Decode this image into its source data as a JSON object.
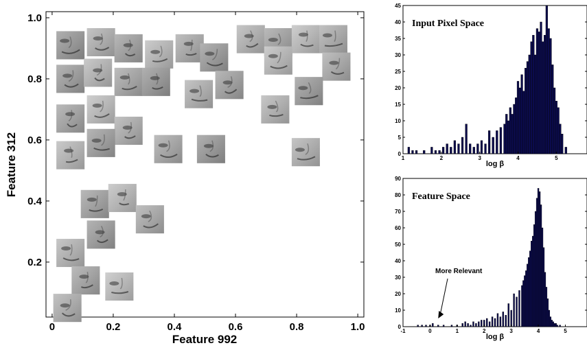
{
  "chart_data": [
    {
      "type": "scatter",
      "title": "",
      "xlabel": "Feature 992",
      "ylabel": "Feature 312",
      "xlim": [
        -0.02,
        1.02
      ],
      "ylim": [
        0.02,
        1.02
      ],
      "xticks": [
        "0",
        "0.2",
        "0.4",
        "0.6",
        "0.8",
        "1.0"
      ],
      "yticks": [
        "0.2",
        "0.4",
        "0.6",
        "0.8",
        "1.0"
      ],
      "marker": "face-thumbnail",
      "points": [
        {
          "x": 0.06,
          "y": 0.91
        },
        {
          "x": 0.16,
          "y": 0.92
        },
        {
          "x": 0.25,
          "y": 0.9
        },
        {
          "x": 0.35,
          "y": 0.88
        },
        {
          "x": 0.45,
          "y": 0.9
        },
        {
          "x": 0.53,
          "y": 0.87
        },
        {
          "x": 0.65,
          "y": 0.93
        },
        {
          "x": 0.74,
          "y": 0.92
        },
        {
          "x": 0.83,
          "y": 0.93
        },
        {
          "x": 0.92,
          "y": 0.93
        },
        {
          "x": 0.06,
          "y": 0.8
        },
        {
          "x": 0.15,
          "y": 0.82
        },
        {
          "x": 0.25,
          "y": 0.79
        },
        {
          "x": 0.34,
          "y": 0.79
        },
        {
          "x": 0.48,
          "y": 0.75
        },
        {
          "x": 0.58,
          "y": 0.78
        },
        {
          "x": 0.74,
          "y": 0.86
        },
        {
          "x": 0.93,
          "y": 0.84
        },
        {
          "x": 0.84,
          "y": 0.76
        },
        {
          "x": 0.73,
          "y": 0.7
        },
        {
          "x": 0.06,
          "y": 0.67
        },
        {
          "x": 0.16,
          "y": 0.7
        },
        {
          "x": 0.25,
          "y": 0.63
        },
        {
          "x": 0.16,
          "y": 0.59
        },
        {
          "x": 0.06,
          "y": 0.55
        },
        {
          "x": 0.38,
          "y": 0.57
        },
        {
          "x": 0.52,
          "y": 0.57
        },
        {
          "x": 0.83,
          "y": 0.56
        },
        {
          "x": 0.14,
          "y": 0.39
        },
        {
          "x": 0.23,
          "y": 0.41
        },
        {
          "x": 0.32,
          "y": 0.34
        },
        {
          "x": 0.16,
          "y": 0.29
        },
        {
          "x": 0.06,
          "y": 0.23
        },
        {
          "x": 0.11,
          "y": 0.14
        },
        {
          "x": 0.22,
          "y": 0.12
        },
        {
          "x": 0.05,
          "y": 0.05
        }
      ]
    },
    {
      "type": "bar",
      "title": "Input Pixel Space",
      "xlabel": "log β",
      "ylabel": "",
      "xlim": [
        1,
        5.8
      ],
      "ylim": [
        0,
        45
      ],
      "xticks": [
        "1",
        "2",
        "3",
        "4",
        "5"
      ],
      "yticks": [
        "0",
        "5",
        "10",
        "15",
        "20",
        "25",
        "30",
        "35",
        "40",
        "45"
      ],
      "bar_color": "#0b0b4d",
      "bin_width": 0.05,
      "x": [
        1.05,
        1.15,
        1.25,
        1.35,
        1.45,
        1.55,
        1.65,
        1.75,
        1.85,
        1.95,
        2.05,
        2.15,
        2.25,
        2.35,
        2.45,
        2.55,
        2.65,
        2.75,
        2.85,
        2.95,
        3.05,
        3.15,
        3.25,
        3.35,
        3.45,
        3.55,
        3.65,
        3.7,
        3.75,
        3.8,
        3.85,
        3.9,
        3.95,
        4.0,
        4.05,
        4.1,
        4.15,
        4.2,
        4.25,
        4.3,
        4.35,
        4.4,
        4.45,
        4.5,
        4.55,
        4.6,
        4.65,
        4.7,
        4.75,
        4.8,
        4.85,
        4.9,
        4.95,
        5.0,
        5.05,
        5.1,
        5.15,
        5.25
      ],
      "values": [
        0,
        2,
        1,
        1,
        0,
        1,
        0,
        2,
        1,
        1,
        2,
        3,
        2,
        4,
        3,
        5,
        9,
        3,
        2,
        3,
        4,
        3,
        7,
        5,
        7,
        8,
        9,
        12,
        10,
        14,
        12,
        15,
        17,
        22,
        20,
        24,
        19,
        26,
        28,
        30,
        34,
        36,
        30,
        38,
        37,
        40,
        34,
        36,
        45,
        38,
        35,
        27,
        20,
        16,
        14,
        9,
        6,
        2
      ]
    },
    {
      "type": "bar",
      "title": "Feature Space",
      "xlabel": "log β",
      "ylabel": "",
      "xlim": [
        -1,
        5.8
      ],
      "ylim": [
        0,
        90
      ],
      "xticks": [
        "-1",
        "0",
        "1",
        "2",
        "3",
        "4",
        "5"
      ],
      "yticks": [
        "0",
        "10",
        "20",
        "30",
        "40",
        "50",
        "60",
        "70",
        "80",
        "90"
      ],
      "bar_color": "#0b0b4d",
      "bin_width": 0.05,
      "annotation": "More Relevant",
      "annotation_target": [
        0.3,
        5
      ],
      "x": [
        -0.45,
        -0.3,
        -0.15,
        0.0,
        0.1,
        0.3,
        0.5,
        0.8,
        1.0,
        1.2,
        1.3,
        1.4,
        1.5,
        1.6,
        1.7,
        1.8,
        1.9,
        2.0,
        2.1,
        2.2,
        2.3,
        2.4,
        2.5,
        2.6,
        2.7,
        2.8,
        2.9,
        3.0,
        3.1,
        3.2,
        3.3,
        3.4,
        3.45,
        3.5,
        3.55,
        3.6,
        3.65,
        3.7,
        3.75,
        3.8,
        3.85,
        3.9,
        3.95,
        4.0,
        4.05,
        4.1,
        4.15,
        4.2,
        4.25,
        4.3,
        4.35,
        4.4,
        4.45,
        4.5,
        4.55,
        4.6,
        4.65,
        4.7,
        4.8
      ],
      "values": [
        1,
        1,
        1,
        1,
        2,
        1,
        1,
        1,
        1,
        2,
        3,
        2,
        1,
        3,
        2,
        3,
        4,
        4,
        5,
        3,
        6,
        5,
        8,
        6,
        9,
        7,
        14,
        10,
        20,
        18,
        22,
        25,
        28,
        31,
        34,
        38,
        42,
        46,
        52,
        55,
        62,
        70,
        78,
        84,
        82,
        74,
        60,
        48,
        33,
        24,
        17,
        10,
        6,
        4,
        3,
        2,
        2,
        1,
        1
      ]
    }
  ]
}
